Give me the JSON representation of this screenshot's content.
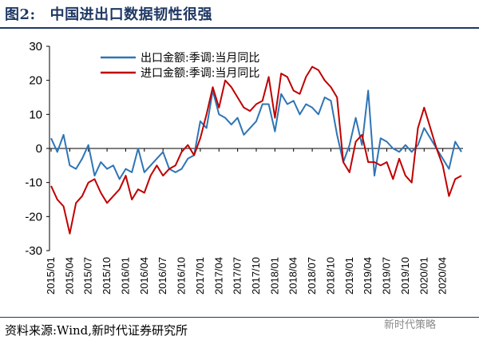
{
  "header": {
    "figure_number": "图2:",
    "figure_title": "中国进出口数据韧性很强"
  },
  "footer": {
    "source": "资料来源:Wind,新时代证券研究所",
    "watermark": "新时代策略"
  },
  "colors": {
    "export": "#2e75b6",
    "import": "#c00000",
    "title": "#1f3864"
  },
  "chart_data": {
    "type": "line",
    "title": "",
    "xlabel": "",
    "ylabel": "",
    "ylim": [
      -30,
      30
    ],
    "yticks": [
      -30,
      -20,
      -10,
      0,
      10,
      20,
      30
    ],
    "xtick_labels": [
      "2015/01",
      "2015/04",
      "2015/07",
      "2015/10",
      "2016/01",
      "2016/04",
      "2016/07",
      "2016/10",
      "2017/01",
      "2017/04",
      "2017/07",
      "2017/10",
      "2018/01",
      "2018/04",
      "2018/07",
      "2018/10",
      "2019/01",
      "2019/04",
      "2019/07",
      "2019/10",
      "2020/01",
      "2020/04"
    ],
    "legend_position": "top-left",
    "grid": false,
    "series": [
      {
        "name": "出口金额:季调:当月同比",
        "color": "#2e75b6",
        "values": [
          3,
          -1,
          4,
          -5,
          -6,
          -3,
          1,
          -8,
          -4,
          -6,
          -5,
          -9,
          -6,
          -7,
          0,
          -7,
          -5,
          -3,
          -1,
          -6,
          -7,
          -6,
          -3,
          -2,
          8,
          6,
          17,
          10,
          9,
          7,
          9,
          4,
          6,
          8,
          13,
          13,
          5,
          16,
          13,
          14,
          10,
          13,
          12,
          10,
          15,
          14,
          4,
          -4,
          1,
          9,
          1,
          17,
          -8,
          3,
          2,
          0,
          -1,
          1,
          -1,
          1,
          6,
          3,
          0,
          -3,
          -6,
          2,
          -1
        ]
      },
      {
        "name": "进口金额:季调:当月同比",
        "color": "#c00000",
        "values": [
          -11,
          -15,
          -17,
          -25,
          -16,
          -14,
          -10,
          -9,
          -13,
          -16,
          -14,
          -12,
          -8,
          -15,
          -12,
          -13,
          -8,
          -5,
          -8,
          -6,
          -5,
          -1,
          1,
          -2,
          3,
          10,
          18,
          12,
          20,
          18,
          15,
          12,
          11,
          13,
          14,
          21,
          9,
          22,
          21,
          17,
          16,
          21,
          24,
          23,
          20,
          18,
          15,
          -4,
          -7,
          2,
          4,
          -4,
          -4,
          -5,
          -4,
          -9,
          -3,
          -8,
          -10,
          6,
          12,
          6,
          0,
          -5,
          -14,
          -9,
          -8
        ]
      }
    ]
  }
}
